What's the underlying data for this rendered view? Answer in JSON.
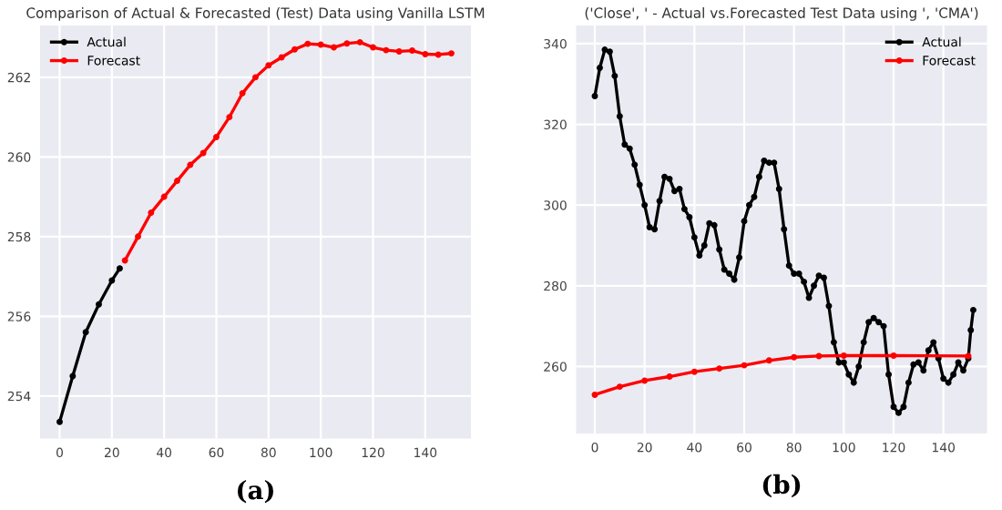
{
  "chart_data": [
    {
      "type": "line",
      "title": "Comparison of Actual & Forecasted (Test) Data using Vanilla LSTM",
      "xlim": [
        -7.5,
        157.5
      ],
      "xticks": [
        0,
        20,
        40,
        60,
        80,
        100,
        120,
        140
      ],
      "ylim": [
        252.93,
        263.3
      ],
      "yticks": [
        254,
        256,
        258,
        260,
        262
      ],
      "grid": true,
      "legend": "top left",
      "marker": "circle",
      "annotations": [
        "(a)"
      ],
      "series": [
        {
          "name": "Actual",
          "color": "#000000",
          "x": [
            0,
            5,
            10,
            15,
            20,
            23
          ],
          "values": [
            253.35,
            254.5,
            255.6,
            256.3,
            256.9,
            257.2
          ]
        },
        {
          "name": "Forecast",
          "color": "#ff0000",
          "x": [
            25,
            30,
            35,
            40,
            45,
            50,
            55,
            60,
            65,
            70,
            75,
            80,
            85,
            90,
            95,
            100,
            105,
            110,
            115,
            120,
            125,
            130,
            135,
            140,
            145,
            150
          ],
          "values": [
            257.4,
            258.0,
            258.6,
            259.0,
            259.4,
            259.8,
            260.1,
            260.5,
            261.0,
            261.6,
            262.0,
            262.3,
            262.5,
            262.7,
            262.84,
            262.82,
            262.75,
            262.85,
            262.88,
            262.75,
            262.68,
            262.65,
            262.67,
            262.58,
            262.57,
            262.6
          ]
        }
      ]
    },
    {
      "type": "line",
      "title": "('Close', ' - Actual vs.Forecasted Test Data using ', 'CMA')",
      "xlim": [
        -7.5,
        157.5
      ],
      "xticks": [
        0,
        20,
        40,
        60,
        80,
        100,
        120,
        140
      ],
      "ylim": [
        243.4,
        344.5
      ],
      "yticks": [
        260,
        280,
        300,
        320,
        340
      ],
      "grid": true,
      "legend": "top right",
      "marker": "circle",
      "annotations": [
        "(b)"
      ],
      "series": [
        {
          "name": "Actual",
          "color": "#000000",
          "x": [
            0,
            2,
            4,
            6,
            8,
            10,
            12,
            14,
            16,
            18,
            20,
            22,
            24,
            26,
            28,
            30,
            32,
            34,
            36,
            38,
            40,
            42,
            44,
            46,
            48,
            50,
            52,
            54,
            56,
            58,
            60,
            62,
            64,
            66,
            68,
            70,
            72,
            74,
            76,
            78,
            80,
            82,
            84,
            86,
            88,
            90,
            92,
            94,
            96,
            98,
            100,
            102,
            104,
            106,
            108,
            110,
            112,
            114,
            116,
            118,
            120,
            122,
            124,
            126,
            128,
            130,
            132,
            134,
            136,
            138,
            140,
            142,
            144,
            146,
            148,
            150,
            151,
            152
          ],
          "values": [
            327,
            334,
            338.5,
            338,
            332,
            322,
            315,
            314,
            310,
            305,
            300,
            294.5,
            294,
            301,
            307,
            306.5,
            303.5,
            304,
            299,
            297,
            292,
            287.5,
            290,
            295.5,
            295,
            289,
            284,
            283,
            281.5,
            287,
            296,
            300,
            302,
            307,
            311,
            310.5,
            310.5,
            304,
            294,
            285,
            283,
            283,
            281,
            277,
            280,
            282.5,
            282,
            275,
            266,
            261,
            261,
            258,
            256,
            260,
            266,
            271,
            272,
            271,
            270,
            258,
            250,
            248.5,
            250,
            256,
            260.5,
            261,
            259,
            264,
            266,
            262,
            257,
            256,
            258,
            261,
            259,
            262,
            269,
            274
          ]
        },
        {
          "name": "Forecast",
          "color": "#ff0000",
          "x": [
            0,
            10,
            20,
            30,
            40,
            50,
            60,
            70,
            80,
            90,
            100,
            120,
            150
          ],
          "values": [
            253,
            255,
            256.5,
            257.5,
            258.7,
            259.5,
            260.3,
            261.5,
            262.3,
            262.6,
            262.7,
            262.7,
            262.6
          ]
        }
      ]
    }
  ]
}
